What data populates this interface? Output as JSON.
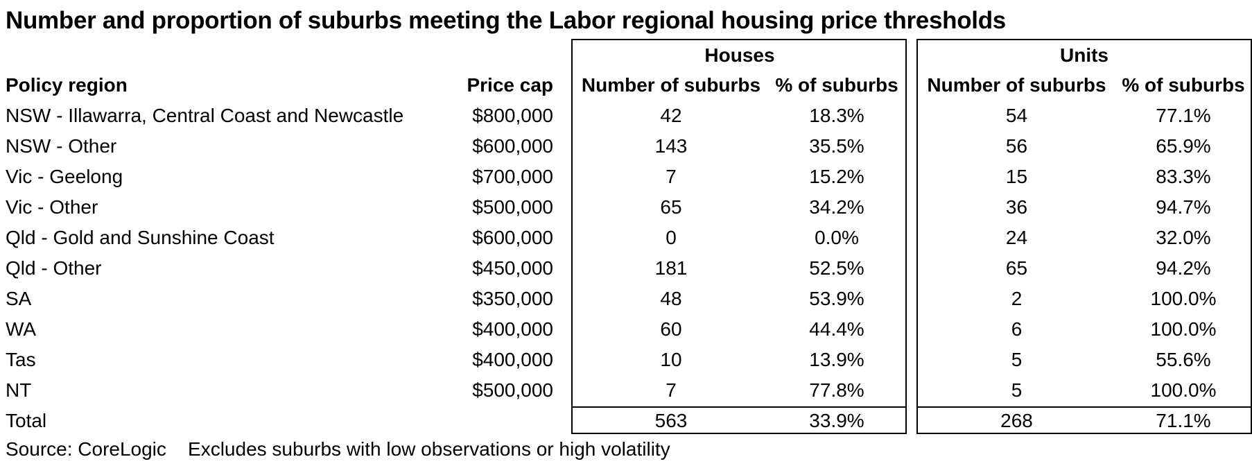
{
  "title": "Number and proportion of suburbs meeting the Labor regional housing price thresholds",
  "source_label": "Source:  CoreLogic",
  "note": "Excludes suburbs with low observations or high volatility",
  "chart_data": {
    "type": "table",
    "group_headers": [
      "Houses",
      "Units"
    ],
    "columns": [
      "Policy region",
      "Price cap",
      "Number of suburbs",
      "% of suburbs",
      "Number of suburbs",
      "% of suburbs"
    ],
    "rows": [
      [
        "NSW - Illawarra, Central Coast and Newcastle",
        "$800,000",
        "42",
        "18.3%",
        "54",
        "77.1%"
      ],
      [
        "NSW - Other",
        "$600,000",
        "143",
        "35.5%",
        "56",
        "65.9%"
      ],
      [
        "Vic - Geelong",
        "$700,000",
        "7",
        "15.2%",
        "15",
        "83.3%"
      ],
      [
        "Vic - Other",
        "$500,000",
        "65",
        "34.2%",
        "36",
        "94.7%"
      ],
      [
        "Qld - Gold and Sunshine Coast",
        "$600,000",
        "0",
        "0.0%",
        "24",
        "32.0%"
      ],
      [
        "Qld - Other",
        "$450,000",
        "181",
        "52.5%",
        "65",
        "94.2%"
      ],
      [
        "SA",
        "$350,000",
        "48",
        "53.9%",
        "2",
        "100.0%"
      ],
      [
        "WA",
        "$400,000",
        "60",
        "44.4%",
        "6",
        "100.0%"
      ],
      [
        "Tas",
        "$400,000",
        "10",
        "13.9%",
        "5",
        "55.6%"
      ],
      [
        "NT",
        "$500,000",
        "7",
        "77.8%",
        "5",
        "100.0%"
      ]
    ],
    "total": [
      "Total",
      "",
      "563",
      "33.9%",
      "268",
      "71.1%"
    ]
  }
}
